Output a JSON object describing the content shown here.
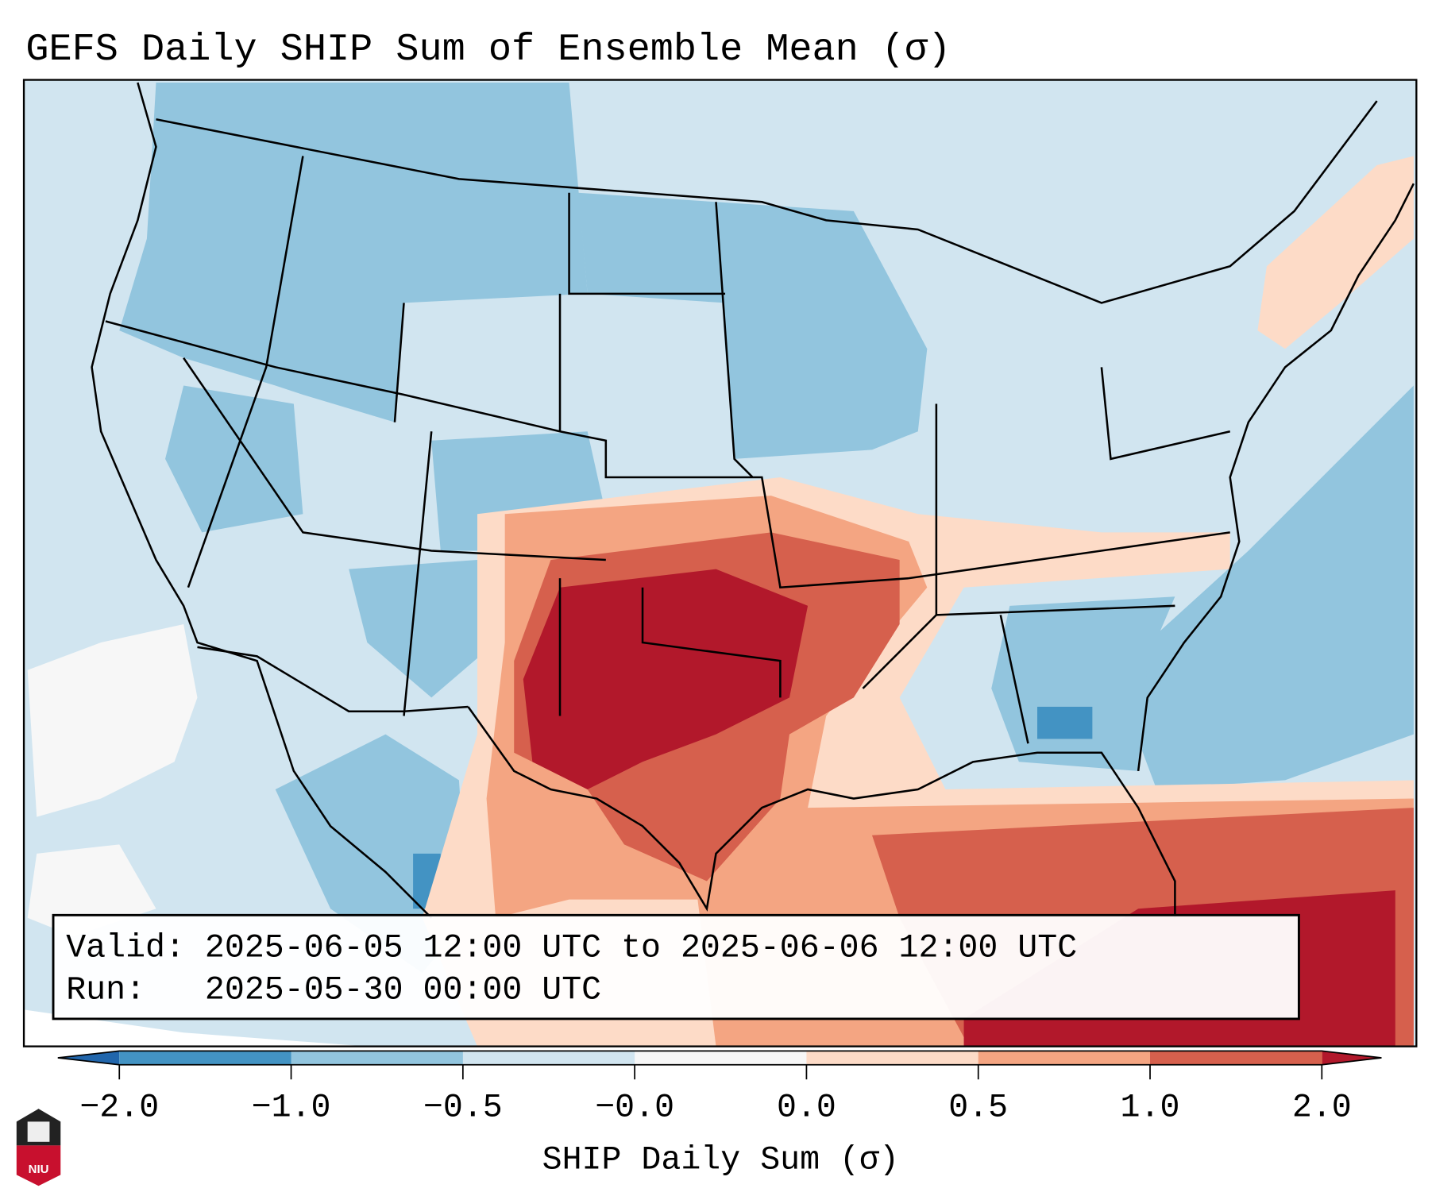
{
  "chart_data": {
    "type": "heatmap",
    "title": "GEFS Daily SHIP Sum of Ensemble Mean (σ)",
    "colorbar": {
      "label": "SHIP Daily Sum (σ)",
      "ticks": [
        "-2.0",
        "-1.0",
        "-0.5",
        "-0.0",
        "0.0",
        "0.5",
        "1.0",
        "2.0"
      ],
      "levels": [
        -2.0,
        -1.0,
        -0.5,
        -0.0,
        0.0,
        0.5,
        1.0,
        2.0
      ],
      "colors": [
        "#4393c3",
        "#92c5de",
        "#d1e5f0",
        "#f7f7f7",
        "#fddbc7",
        "#f4a582",
        "#d6604d"
      ],
      "under_color": "#2166ac",
      "over_color": "#b2182b",
      "extend": "both"
    },
    "region": "Contiguous United States",
    "highlights": [
      {
        "area": "Oklahoma / northern Texas",
        "value_range": ">2.0"
      },
      {
        "area": "Arkansas / Kansas / central Texas",
        "value_range": "1.0 to 2.0"
      },
      {
        "area": "Gulf of Mexico / Caribbean",
        "value_range": "0.5 to >2.0"
      },
      {
        "area": "Northwest / Upper Midwest / western Atlantic",
        "value_range": "-1.0 to -0.5"
      }
    ]
  },
  "info_box": {
    "valid_line": "Valid: 2025-06-05 12:00 UTC to 2025-06-06 12:00 UTC",
    "run_line": "Run:   2025-05-30 00:00 UTC"
  },
  "logo": {
    "text": "NIU"
  }
}
